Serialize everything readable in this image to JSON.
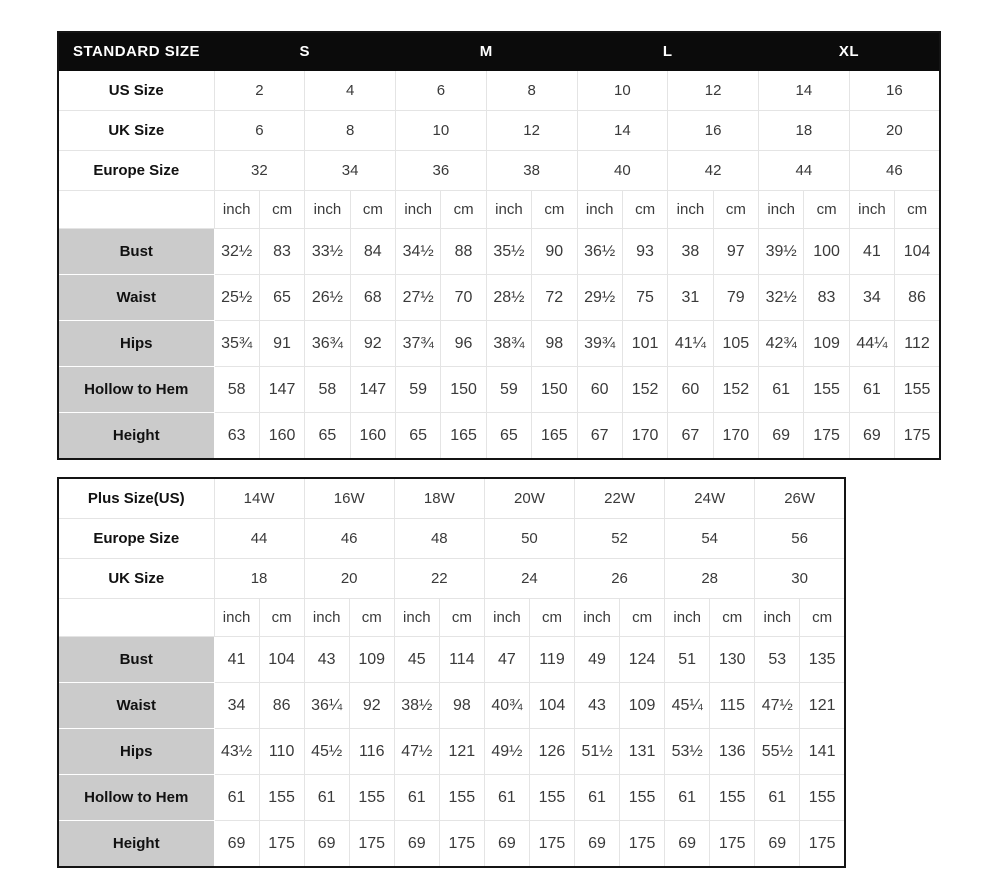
{
  "colors": {
    "header_bg": "#0b0b0b",
    "header_text": "#ffffff",
    "label_bg": "#cbcbcb",
    "grid_line": "#e4e4e4",
    "text": "#3a3a3a",
    "border": "#141414"
  },
  "standard_table": {
    "title": "STANDARD SIZE",
    "size_groups": [
      "S",
      "M",
      "L",
      "XL"
    ],
    "size_rows": [
      {
        "label": "US Size",
        "values": [
          "2",
          "4",
          "6",
          "8",
          "10",
          "12",
          "14",
          "16"
        ]
      },
      {
        "label": "UK Size",
        "values": [
          "6",
          "8",
          "10",
          "12",
          "14",
          "16",
          "18",
          "20"
        ]
      },
      {
        "label": "Europe Size",
        "values": [
          "32",
          "34",
          "36",
          "38",
          "40",
          "42",
          "44",
          "46"
        ]
      }
    ],
    "unit_row": [
      "inch",
      "cm",
      "inch",
      "cm",
      "inch",
      "cm",
      "inch",
      "cm",
      "inch",
      "cm",
      "inch",
      "cm",
      "inch",
      "cm",
      "inch",
      "cm"
    ],
    "measure_rows": [
      {
        "label": "Bust",
        "values": [
          "32½",
          "83",
          "33½",
          "84",
          "34½",
          "88",
          "35½",
          "90",
          "36½",
          "93",
          "38",
          "97",
          "39½",
          "100",
          "41",
          "104"
        ]
      },
      {
        "label": "Waist",
        "values": [
          "25½",
          "65",
          "26½",
          "68",
          "27½",
          "70",
          "28½",
          "72",
          "29½",
          "75",
          "31",
          "79",
          "32½",
          "83",
          "34",
          "86"
        ]
      },
      {
        "label": "Hips",
        "values": [
          "35¾",
          "91",
          "36¾",
          "92",
          "37¾",
          "96",
          "38¾",
          "98",
          "39¾",
          "101",
          "41¼",
          "105",
          "42¾",
          "109",
          "44¼",
          "112"
        ]
      },
      {
        "label": "Hollow to Hem",
        "values": [
          "58",
          "147",
          "58",
          "147",
          "59",
          "150",
          "59",
          "150",
          "60",
          "152",
          "60",
          "152",
          "61",
          "155",
          "61",
          "155"
        ]
      },
      {
        "label": "Height",
        "values": [
          "63",
          "160",
          "65",
          "160",
          "65",
          "165",
          "65",
          "165",
          "67",
          "170",
          "67",
          "170",
          "69",
          "175",
          "69",
          "175"
        ]
      }
    ]
  },
  "plus_table": {
    "size_rows": [
      {
        "label": "Plus Size(US)",
        "values": [
          "14W",
          "16W",
          "18W",
          "20W",
          "22W",
          "24W",
          "26W"
        ]
      },
      {
        "label": "Europe Size",
        "values": [
          "44",
          "46",
          "48",
          "50",
          "52",
          "54",
          "56"
        ]
      },
      {
        "label": "UK Size",
        "values": [
          "18",
          "20",
          "22",
          "24",
          "26",
          "28",
          "30"
        ]
      }
    ],
    "unit_row": [
      "inch",
      "cm",
      "inch",
      "cm",
      "inch",
      "cm",
      "inch",
      "cm",
      "inch",
      "cm",
      "inch",
      "cm",
      "inch",
      "cm"
    ],
    "measure_rows": [
      {
        "label": "Bust",
        "values": [
          "41",
          "104",
          "43",
          "109",
          "45",
          "114",
          "47",
          "119",
          "49",
          "124",
          "51",
          "130",
          "53",
          "135"
        ]
      },
      {
        "label": "Waist",
        "values": [
          "34",
          "86",
          "36¼",
          "92",
          "38½",
          "98",
          "40¾",
          "104",
          "43",
          "109",
          "45¼",
          "115",
          "47½",
          "121"
        ]
      },
      {
        "label": "Hips",
        "values": [
          "43½",
          "110",
          "45½",
          "116",
          "47½",
          "121",
          "49½",
          "126",
          "51½",
          "131",
          "53½",
          "136",
          "55½",
          "141"
        ]
      },
      {
        "label": "Hollow to Hem",
        "values": [
          "61",
          "155",
          "61",
          "155",
          "61",
          "155",
          "61",
          "155",
          "61",
          "155",
          "61",
          "155",
          "61",
          "155"
        ]
      },
      {
        "label": "Height",
        "values": [
          "69",
          "175",
          "69",
          "175",
          "69",
          "175",
          "69",
          "175",
          "69",
          "175",
          "69",
          "175",
          "69",
          "175"
        ]
      }
    ]
  }
}
